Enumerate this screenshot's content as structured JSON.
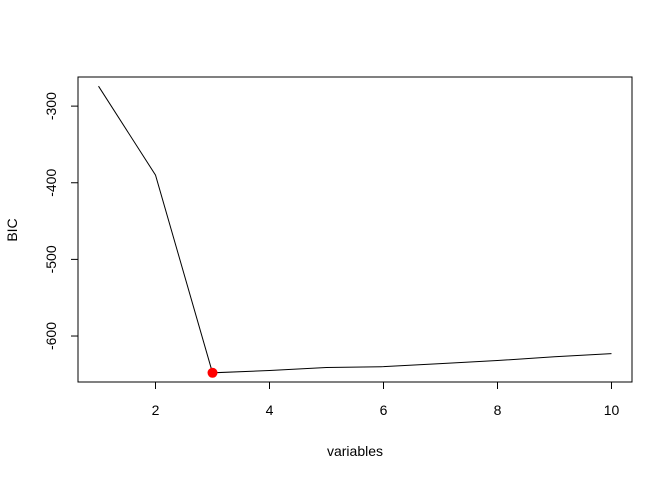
{
  "chart_data": {
    "type": "line",
    "title": "",
    "xlabel": "variables",
    "ylabel": "BIC",
    "xlim": [
      0.64,
      10.36
    ],
    "ylim": [
      -660,
      -262
    ],
    "xticks": [
      2,
      4,
      6,
      8,
      10
    ],
    "yticks": [
      -300,
      -400,
      -500,
      -600
    ],
    "grid": false,
    "legend": "none",
    "series": [
      {
        "x": [
          1,
          2,
          3,
          4,
          5,
          6,
          7,
          8,
          9,
          10
        ],
        "y": [
          -274,
          -390,
          -648,
          -645,
          -641,
          -640,
          -636,
          -632,
          -627,
          -623
        ],
        "color": "#000000"
      }
    ],
    "highlight": {
      "x": 3,
      "y": -648,
      "color": "#ff0000"
    }
  }
}
